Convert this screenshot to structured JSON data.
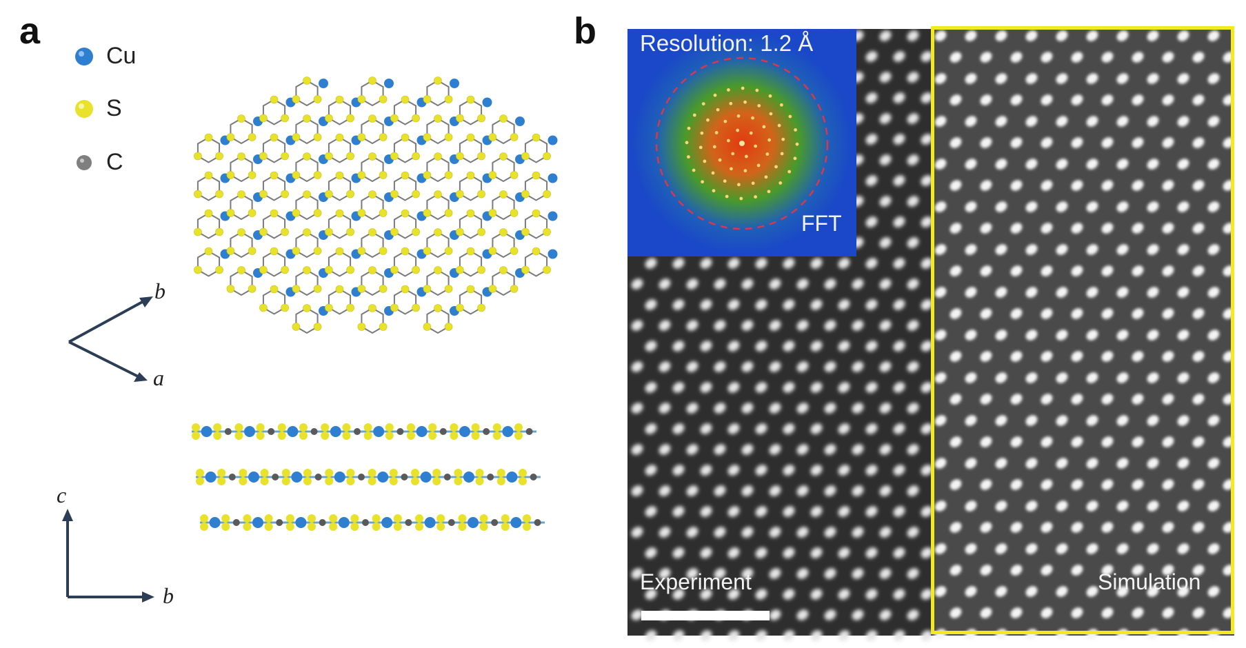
{
  "panel_a": {
    "label": "a",
    "legend": [
      {
        "element": "Cu",
        "color": "#2f7fd1"
      },
      {
        "element": "S",
        "color": "#e8e22a"
      },
      {
        "element": "C",
        "color": "#7f7f7f"
      }
    ],
    "axes_top": {
      "upper": "b",
      "lower": "a"
    },
    "axes_bottom": {
      "vertical": "c",
      "horizontal": "b"
    }
  },
  "panel_b": {
    "label": "b",
    "inset_title": "Resolution: 1.2 Å",
    "inset_label": "FFT",
    "left_label": "Experiment",
    "right_label": "Simulation",
    "highlight_color": "#f2ea1c"
  }
}
